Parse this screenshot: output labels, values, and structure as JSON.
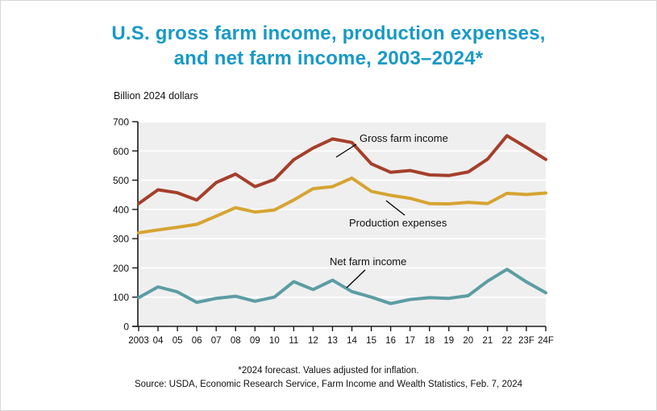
{
  "title": {
    "line1": "U.S. gross farm income, production expenses,",
    "line2": "and net farm income, 2003–2024*"
  },
  "unit_label": "Billion 2024 dollars",
  "footnote": "*2024 forecast. Values adjusted for inflation.",
  "source": "Source: USDA, Economic Research Service, Farm Income and Wealth Statistics, Feb. 7, 2024",
  "colors": {
    "title": "#1899C7",
    "gross": "#A53F2B",
    "expenses": "#D6A432",
    "net": "#5C9DA3",
    "plot_bg": "#EFEFEF",
    "gridline": "#FFFFFF",
    "axis": "#1a1a1a",
    "text": "#111111"
  },
  "chart_data": {
    "type": "line",
    "title": "U.S. gross farm income, production expenses, and net farm income, 2003–2024*",
    "ylabel": "Billion 2024 dollars",
    "xlabel": "",
    "ylim": [
      0,
      700
    ],
    "ytick_step": 100,
    "grid": true,
    "legend_position": "inline-labels",
    "categories": [
      "2003",
      "04",
      "05",
      "06",
      "07",
      "08",
      "09",
      "10",
      "11",
      "12",
      "13",
      "14",
      "15",
      "16",
      "17",
      "18",
      "19",
      "20",
      "21",
      "22",
      "23F",
      "24F"
    ],
    "series": [
      {
        "name": "Gross farm income",
        "color_key": "gross",
        "values": [
          420,
          467,
          457,
          432,
          492,
          521,
          478,
          502,
          570,
          610,
          641,
          629,
          556,
          527,
          533,
          518,
          516,
          528,
          572,
          652,
          612,
          571
        ],
        "label": {
          "x": 445,
          "y": 175,
          "leader": [
            416,
            194,
            441,
            178
          ]
        }
      },
      {
        "name": "Production expenses",
        "color_key": "expenses",
        "values": [
          320,
          330,
          339,
          349,
          377,
          406,
          391,
          398,
          432,
          471,
          478,
          507,
          462,
          448,
          438,
          420,
          419,
          424,
          420,
          455,
          451,
          456
        ],
        "label": {
          "x": 432,
          "y": 280,
          "leader": [
            478,
            248,
            501,
            266
          ]
        }
      },
      {
        "name": "Net farm income",
        "color_key": "net",
        "values": [
          98,
          135,
          118,
          82,
          96,
          103,
          86,
          100,
          153,
          126,
          158,
          119,
          100,
          78,
          92,
          98,
          96,
          105,
          155,
          195,
          152,
          115
        ],
        "label": {
          "x": 408,
          "y": 328,
          "leader": [
            452,
            334,
            429,
            356
          ]
        }
      }
    ]
  }
}
